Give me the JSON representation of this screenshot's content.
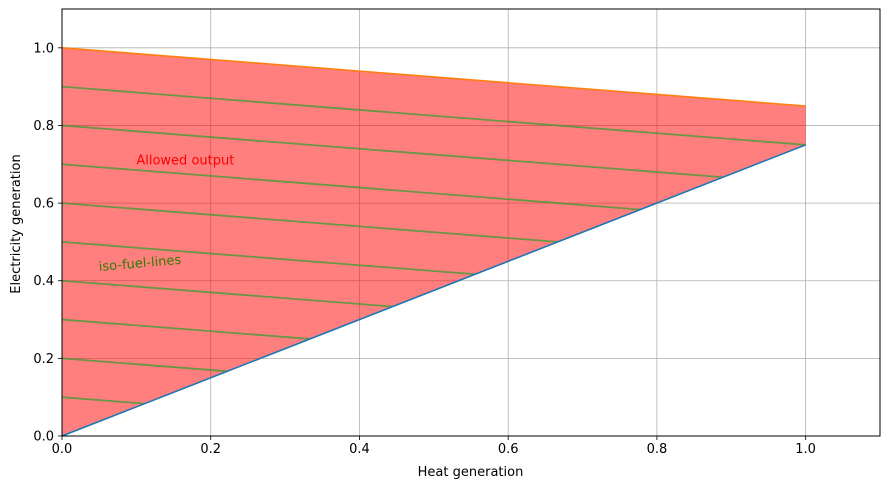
{
  "chart_data": {
    "type": "area",
    "title": "",
    "xlabel": "Heat generation",
    "ylabel": "Electricity generation",
    "xlim": [
      0.0,
      1.1
    ],
    "ylim": [
      0.0,
      1.1
    ],
    "xticks": [
      0.0,
      0.2,
      0.4,
      0.6,
      0.8,
      1.0
    ],
    "yticks": [
      0.0,
      0.2,
      0.4,
      0.6,
      0.8,
      1.0
    ],
    "xtick_labels": [
      "0.0",
      "0.2",
      "0.4",
      "0.6",
      "0.8",
      "1.0"
    ],
    "ytick_labels": [
      "0.0",
      "0.2",
      "0.4",
      "0.6",
      "0.8",
      "1.0"
    ],
    "grid": true,
    "legend": "none",
    "series": [
      {
        "kind": "line",
        "x": [
          0.0,
          1.0
        ],
        "y": [
          0.0,
          0.75
        ],
        "color": "#1f77b4"
      },
      {
        "kind": "line",
        "x": [
          0.0,
          1.0
        ],
        "y": [
          1.0,
          0.85
        ],
        "color": "#ff7f0e"
      }
    ],
    "filled_region": {
      "label": "Allowed output",
      "color": "#ff0000",
      "opacity": 0.5,
      "polygon": [
        [
          0.0,
          0.0
        ],
        [
          0.0,
          1.0
        ],
        [
          1.0,
          0.85
        ],
        [
          1.0,
          0.75
        ]
      ]
    },
    "iso_fuel_lines": {
      "label": "iso-fuel-lines",
      "color": "#2ca02c",
      "opacity": 0.7,
      "slope": -0.15,
      "y_intercepts": [
        0.1,
        0.2,
        0.3,
        0.4,
        0.5,
        0.6,
        0.7,
        0.8,
        0.9
      ]
    },
    "annotations": [
      {
        "text": "Allowed output",
        "x": 0.1,
        "y": 0.7,
        "color": "#ff0000",
        "rotation": 0
      },
      {
        "text": "iso-fuel-lines",
        "x": 0.05,
        "y": 0.425,
        "color": "#2e7d00",
        "rotation": -5
      }
    ]
  }
}
